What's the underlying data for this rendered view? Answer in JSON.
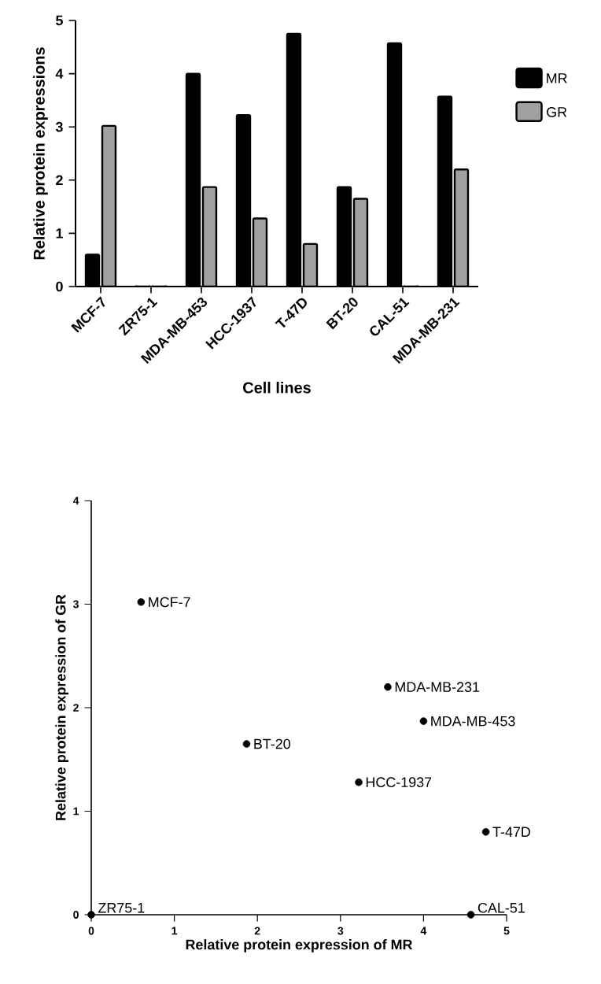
{
  "chart_data": [
    {
      "type": "bar",
      "xlabel": "Cell lines",
      "ylabel": "Relative protein expressions",
      "categories": [
        "MCF-7",
        "ZR75-1",
        "MDA-MB-453",
        "HCC-1937",
        "T-47D",
        "BT-20",
        "CAL-51",
        "MDA-MB-231"
      ],
      "series": [
        {
          "name": "MR",
          "color": "#000000",
          "values": [
            0.6,
            0,
            4.0,
            3.22,
            4.75,
            1.87,
            4.57,
            3.57
          ]
        },
        {
          "name": "GR",
          "color": "#a0a0a0",
          "values": [
            3.02,
            0,
            1.87,
            1.28,
            0.8,
            1.65,
            0,
            2.2
          ]
        }
      ],
      "ylim": [
        0,
        5
      ],
      "yticks": [
        0,
        1,
        2,
        3,
        4,
        5
      ],
      "grid": false,
      "legend": "right"
    },
    {
      "type": "scatter",
      "xlabel": "Relative protein expression of MR",
      "ylabel": "Relative protein expression of GR",
      "x": [
        0.6,
        0,
        4.0,
        3.22,
        4.75,
        1.87,
        4.57,
        3.57
      ],
      "series": [
        {
          "color": "#000000",
          "values": [
            3.02,
            0,
            1.87,
            1.28,
            0.8,
            1.65,
            0,
            2.2
          ]
        }
      ],
      "xlim": [
        0,
        5
      ],
      "xticks": [
        0,
        1,
        2,
        3,
        4,
        5
      ],
      "ylim": [
        0,
        4
      ],
      "yticks": [
        0,
        1,
        2,
        3,
        4
      ],
      "marker": "circle",
      "grid": false,
      "annotations": [
        {
          "text": "MCF-7",
          "x": 0.6,
          "y": 3.02
        },
        {
          "text": "ZR75-1",
          "x": 0,
          "y": 0
        },
        {
          "text": "MDA-MB-453",
          "x": 4.0,
          "y": 1.87
        },
        {
          "text": "HCC-1937",
          "x": 3.22,
          "y": 1.28
        },
        {
          "text": "T-47D",
          "x": 4.75,
          "y": 0.8
        },
        {
          "text": "BT-20",
          "x": 1.87,
          "y": 1.65
        },
        {
          "text": "CAL-51",
          "x": 4.57,
          "y": 0
        },
        {
          "text": "MDA-MB-231",
          "x": 3.57,
          "y": 2.2
        }
      ]
    }
  ]
}
